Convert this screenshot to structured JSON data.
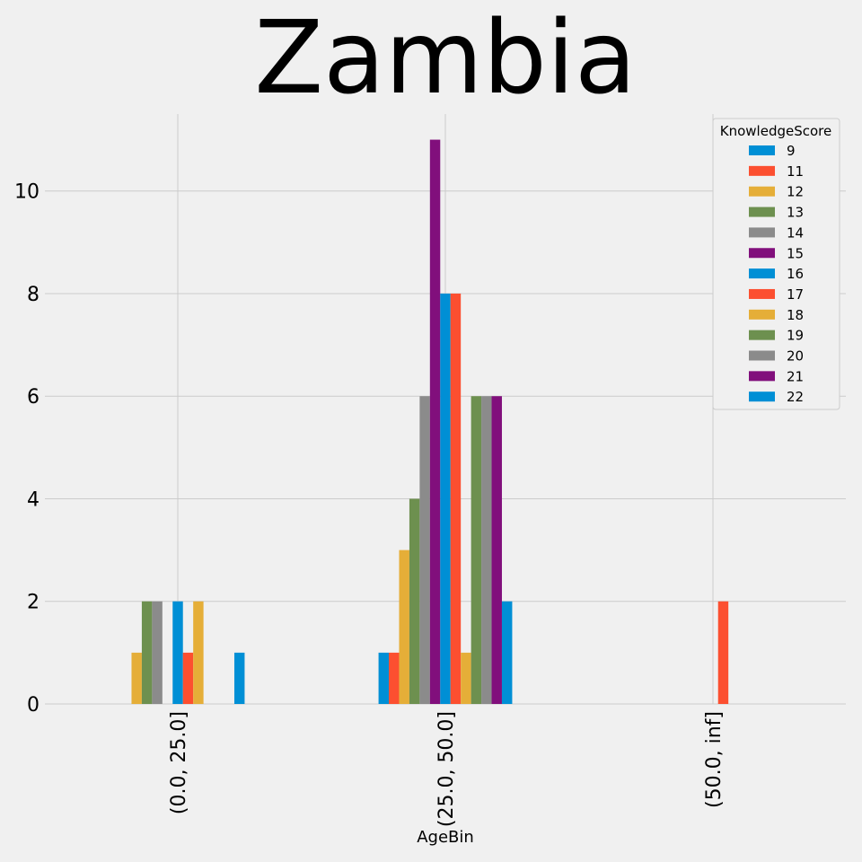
{
  "colors": [
    "#008fd5",
    "#fc4f30",
    "#e5ae38",
    "#6d904f",
    "#8b8b8b",
    "#810f7c"
  ],
  "chart_data": {
    "type": "bar",
    "title": "Zambia",
    "xlabel": "AgeBin",
    "ylabel": "",
    "categories": [
      "(0.0, 25.0]",
      "(25.0, 50.0]",
      "(50.0, inf]"
    ],
    "ylim": [
      0,
      11.5
    ],
    "yticks": [
      0,
      2,
      4,
      6,
      8,
      10
    ],
    "grid": true,
    "legend": {
      "title": "KnowledgeScore",
      "placement": "top-right"
    },
    "series": [
      {
        "name": "9",
        "values": [
          null,
          1,
          null
        ]
      },
      {
        "name": "11",
        "values": [
          null,
          1,
          null
        ]
      },
      {
        "name": "12",
        "values": [
          1,
          3,
          null
        ]
      },
      {
        "name": "13",
        "values": [
          2,
          4,
          null
        ]
      },
      {
        "name": "14",
        "values": [
          2,
          6,
          null
        ]
      },
      {
        "name": "15",
        "values": [
          null,
          11,
          null
        ]
      },
      {
        "name": "16",
        "values": [
          2,
          8,
          null
        ]
      },
      {
        "name": "17",
        "values": [
          1,
          8,
          2
        ]
      },
      {
        "name": "18",
        "values": [
          2,
          1,
          null
        ]
      },
      {
        "name": "19",
        "values": [
          null,
          6,
          null
        ]
      },
      {
        "name": "20",
        "values": [
          null,
          6,
          null
        ]
      },
      {
        "name": "21",
        "values": [
          null,
          6,
          null
        ]
      },
      {
        "name": "22",
        "values": [
          1,
          2,
          null
        ]
      }
    ]
  }
}
